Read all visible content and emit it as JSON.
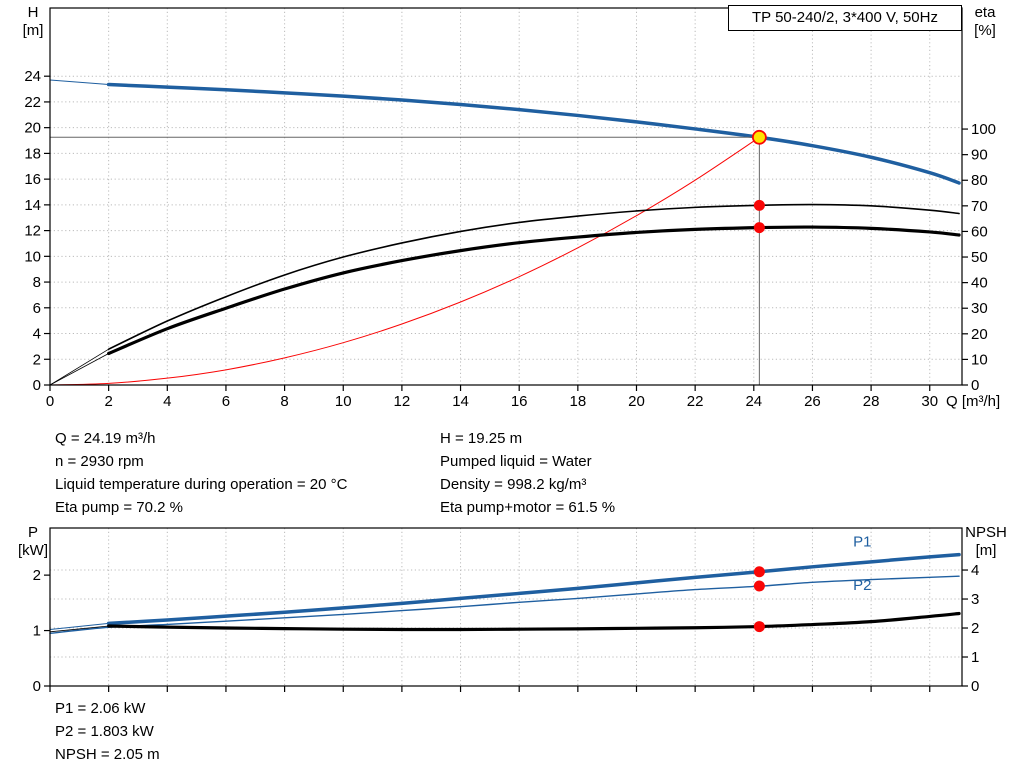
{
  "colors": {
    "curve_blue": "#1f5fa0",
    "curve_black": "#000000",
    "curve_red": "#f90606",
    "dot_red": "#f90606",
    "dot_yellow": "#ffe400",
    "grid": "#bbbbbb",
    "axis": "#000000",
    "duty_line": "#666666",
    "text": "#000000"
  },
  "info_top": {
    "left": [
      "Q = 24.19 m³/h",
      "n = 2930 rpm",
      "Liquid temperature during operation = 20 °C",
      "Eta pump = 70.2 %"
    ],
    "right": [
      "H = 19.25 m",
      "Pumped liquid = Water",
      "Density = 998.2 kg/m³",
      "Eta pump+motor = 61.5 %"
    ]
  },
  "info_bottom": [
    "P1 = 2.06 kW",
    "P2 = 1.803 kW",
    "NPSH = 2.05 m"
  ],
  "chart_data": [
    {
      "id": "main",
      "type": "line",
      "title": "TP 50-240/2, 3*400 V, 50Hz",
      "x": {
        "label": "Q [m³/h]",
        "min": 0,
        "max": 31.1,
        "ticks": [
          0,
          2,
          4,
          6,
          8,
          10,
          12,
          14,
          16,
          18,
          20,
          22,
          24,
          26,
          28,
          30
        ],
        "tick_labels": true
      },
      "y_left": {
        "label": "H",
        "unit": "[m]",
        "min": 0,
        "max": 29.3,
        "ticks": [
          0,
          2,
          4,
          6,
          8,
          10,
          12,
          14,
          16,
          18,
          20,
          22,
          24
        ]
      },
      "y_right": {
        "label": "eta",
        "unit": "[%]",
        "min": 0,
        "max": 147.3,
        "ticks": [
          0,
          10,
          20,
          30,
          40,
          50,
          60,
          70,
          80,
          90,
          100
        ]
      },
      "grid_axis": "left",
      "duty_point": {
        "q": 24.19,
        "h": 19.25
      },
      "curves": [
        {
          "name": "h-lead",
          "axis": "left",
          "color": "curve_blue",
          "width": 1,
          "points": [
            [
              0,
              23.7
            ],
            [
              2,
              23.35
            ]
          ]
        },
        {
          "name": "h-curve",
          "axis": "left",
          "color": "curve_blue",
          "width": 3.5,
          "points": [
            [
              2,
              23.35
            ],
            [
              4,
              23.15
            ],
            [
              6,
              22.95
            ],
            [
              8,
              22.7
            ],
            [
              10,
              22.45
            ],
            [
              12,
              22.15
            ],
            [
              14,
              21.8
            ],
            [
              16,
              21.4
            ],
            [
              18,
              20.95
            ],
            [
              20,
              20.45
            ],
            [
              22,
              19.9
            ],
            [
              24.19,
              19.25
            ],
            [
              26,
              18.6
            ],
            [
              28,
              17.7
            ],
            [
              30,
              16.5
            ],
            [
              31,
              15.7
            ]
          ]
        },
        {
          "name": "system-curve",
          "axis": "left",
          "color": "curve_red",
          "width": 1,
          "points": [
            [
              0,
              0
            ],
            [
              2,
              0.13
            ],
            [
              4,
              0.53
            ],
            [
              6,
              1.18
            ],
            [
              8,
              2.11
            ],
            [
              10,
              3.29
            ],
            [
              12,
              4.74
            ],
            [
              14,
              6.45
            ],
            [
              16,
              8.42
            ],
            [
              18,
              10.66
            ],
            [
              20,
              13.16
            ],
            [
              22,
              15.92
            ],
            [
              24.19,
              19.25
            ]
          ]
        },
        {
          "name": "eta-pump-lead",
          "axis": "right",
          "color": "curve_black",
          "width": 0.8,
          "points": [
            [
              0,
              0
            ],
            [
              2,
              14
            ]
          ]
        },
        {
          "name": "eta-pump",
          "axis": "right",
          "color": "curve_black",
          "width": 1.6,
          "points": [
            [
              2,
              14
            ],
            [
              4,
              25
            ],
            [
              6,
              34.5
            ],
            [
              8,
              43
            ],
            [
              10,
              50
            ],
            [
              12,
              55.5
            ],
            [
              14,
              60
            ],
            [
              16,
              63.5
            ],
            [
              18,
              66
            ],
            [
              20,
              68
            ],
            [
              22,
              69.4
            ],
            [
              24.19,
              70.2
            ],
            [
              26,
              70.5
            ],
            [
              28,
              70
            ],
            [
              30,
              68.3
            ],
            [
              31,
              67
            ]
          ]
        },
        {
          "name": "eta-total-lead",
          "axis": "right",
          "color": "curve_black",
          "width": 0.8,
          "points": [
            [
              0,
              0
            ],
            [
              2,
              12.3
            ]
          ]
        },
        {
          "name": "eta-total",
          "axis": "right",
          "color": "curve_black",
          "width": 3.2,
          "points": [
            [
              2,
              12.3
            ],
            [
              4,
              22
            ],
            [
              6,
              30
            ],
            [
              8,
              37.5
            ],
            [
              10,
              43.8
            ],
            [
              12,
              48.6
            ],
            [
              14,
              52.5
            ],
            [
              16,
              55.6
            ],
            [
              18,
              57.8
            ],
            [
              20,
              59.6
            ],
            [
              22,
              60.8
            ],
            [
              24.19,
              61.5
            ],
            [
              26,
              61.7
            ],
            [
              28,
              61.2
            ],
            [
              30,
              59.8
            ],
            [
              31,
              58.6
            ]
          ]
        }
      ],
      "markers": [
        {
          "type": "duty",
          "axis": "left",
          "q": 24.19,
          "v": 19.25
        },
        {
          "type": "dot",
          "axis": "right",
          "q": 24.19,
          "v": 70.2
        },
        {
          "type": "dot",
          "axis": "right",
          "q": 24.19,
          "v": 61.5
        }
      ],
      "annotations": []
    },
    {
      "id": "power",
      "type": "line",
      "x": {
        "label": "",
        "min": 0,
        "max": 31.1,
        "ticks": [
          0,
          2,
          4,
          6,
          8,
          10,
          12,
          14,
          16,
          18,
          20,
          22,
          24,
          26,
          28,
          30
        ],
        "tick_labels": false
      },
      "y_left": {
        "label": "P",
        "unit": "[kW]",
        "min": 0,
        "max": 2.85,
        "ticks": [
          0,
          1,
          2
        ]
      },
      "y_right": {
        "label": "NPSH",
        "unit": "[m]",
        "min": 0,
        "max": 5.45,
        "ticks": [
          0,
          1,
          2,
          3,
          4
        ]
      },
      "grid_axis": "right",
      "curves": [
        {
          "name": "p1-lead",
          "axis": "left",
          "color": "curve_blue",
          "width": 1,
          "points": [
            [
              0,
              1.02
            ],
            [
              2,
              1.13
            ]
          ]
        },
        {
          "name": "p1-curve",
          "axis": "left",
          "color": "curve_blue",
          "width": 3.5,
          "points": [
            [
              2,
              1.13
            ],
            [
              4,
              1.19
            ],
            [
              6,
              1.26
            ],
            [
              8,
              1.33
            ],
            [
              10,
              1.41
            ],
            [
              12,
              1.49
            ],
            [
              14,
              1.58
            ],
            [
              16,
              1.67
            ],
            [
              18,
              1.76
            ],
            [
              20,
              1.86
            ],
            [
              22,
              1.96
            ],
            [
              24.19,
              2.06
            ],
            [
              26,
              2.15
            ],
            [
              28,
              2.24
            ],
            [
              30,
              2.33
            ],
            [
              31,
              2.37
            ]
          ]
        },
        {
          "name": "p2-curve",
          "axis": "left",
          "color": "curve_blue",
          "width": 1.4,
          "points": [
            [
              0,
              0.95
            ],
            [
              2,
              1.06
            ],
            [
              4,
              1.11
            ],
            [
              6,
              1.17
            ],
            [
              8,
              1.23
            ],
            [
              10,
              1.29
            ],
            [
              12,
              1.36
            ],
            [
              14,
              1.43
            ],
            [
              16,
              1.51
            ],
            [
              18,
              1.58
            ],
            [
              20,
              1.66
            ],
            [
              22,
              1.74
            ],
            [
              24.19,
              1.8
            ],
            [
              26,
              1.87
            ],
            [
              28,
              1.92
            ],
            [
              30,
              1.96
            ],
            [
              31,
              1.98
            ]
          ]
        },
        {
          "name": "npsh-lead",
          "axis": "right",
          "color": "curve_black",
          "width": 0.8,
          "points": [
            [
              0,
              1.87
            ],
            [
              2,
              2.07
            ]
          ]
        },
        {
          "name": "npsh-curve",
          "axis": "right",
          "color": "curve_black",
          "width": 3.2,
          "points": [
            [
              2,
              2.07
            ],
            [
              4,
              2.03
            ],
            [
              6,
              2.0
            ],
            [
              8,
              1.98
            ],
            [
              10,
              1.96
            ],
            [
              12,
              1.95
            ],
            [
              14,
              1.95
            ],
            [
              16,
              1.96
            ],
            [
              18,
              1.97
            ],
            [
              20,
              1.99
            ],
            [
              22,
              2.01
            ],
            [
              24.19,
              2.05
            ],
            [
              26,
              2.12
            ],
            [
              28,
              2.22
            ],
            [
              30,
              2.4
            ],
            [
              31,
              2.5
            ]
          ]
        }
      ],
      "markers": [
        {
          "type": "dot",
          "axis": "left",
          "q": 24.19,
          "v": 2.06
        },
        {
          "type": "dot",
          "axis": "left",
          "q": 24.19,
          "v": 1.803
        },
        {
          "type": "dot",
          "axis": "right",
          "q": 24.19,
          "v": 2.05
        }
      ],
      "annotations": [
        {
          "text": "P1",
          "axis": "left",
          "q": 27.7,
          "v": 2.52
        },
        {
          "text": "P2",
          "axis": "left",
          "q": 27.7,
          "v": 1.73
        }
      ]
    }
  ]
}
